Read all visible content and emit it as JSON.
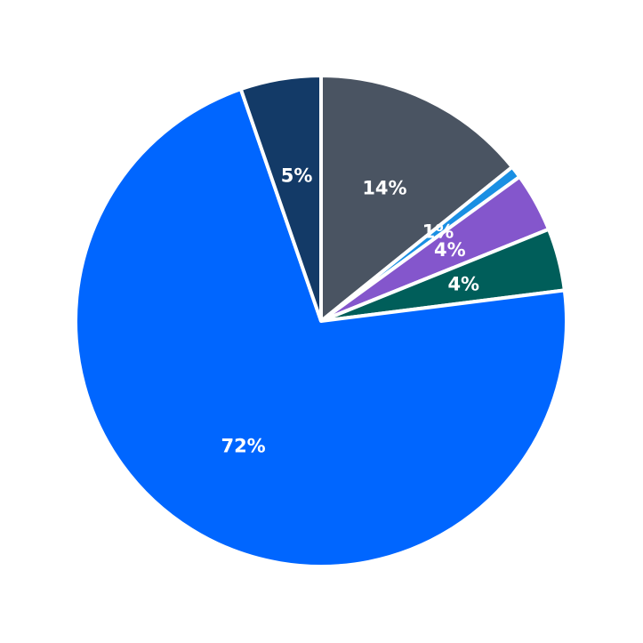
{
  "chart_data": {
    "type": "pie",
    "title": "",
    "start": "top",
    "direction": "clockwise",
    "legend": "none",
    "slices": [
      {
        "label": "14%",
        "value": 14.2,
        "color": "#4a5462"
      },
      {
        "label": "1%",
        "value": 0.8,
        "color": "#1a8fe3"
      },
      {
        "label": "4%",
        "value": 3.9,
        "color": "#8456cc"
      },
      {
        "label": "4%",
        "value": 4.1,
        "color": "#005e5a"
      },
      {
        "label": "72%",
        "value": 71.7,
        "color": "#0066ff"
      },
      {
        "label": "5%",
        "value": 5.3,
        "color": "#133a67"
      }
    ]
  }
}
